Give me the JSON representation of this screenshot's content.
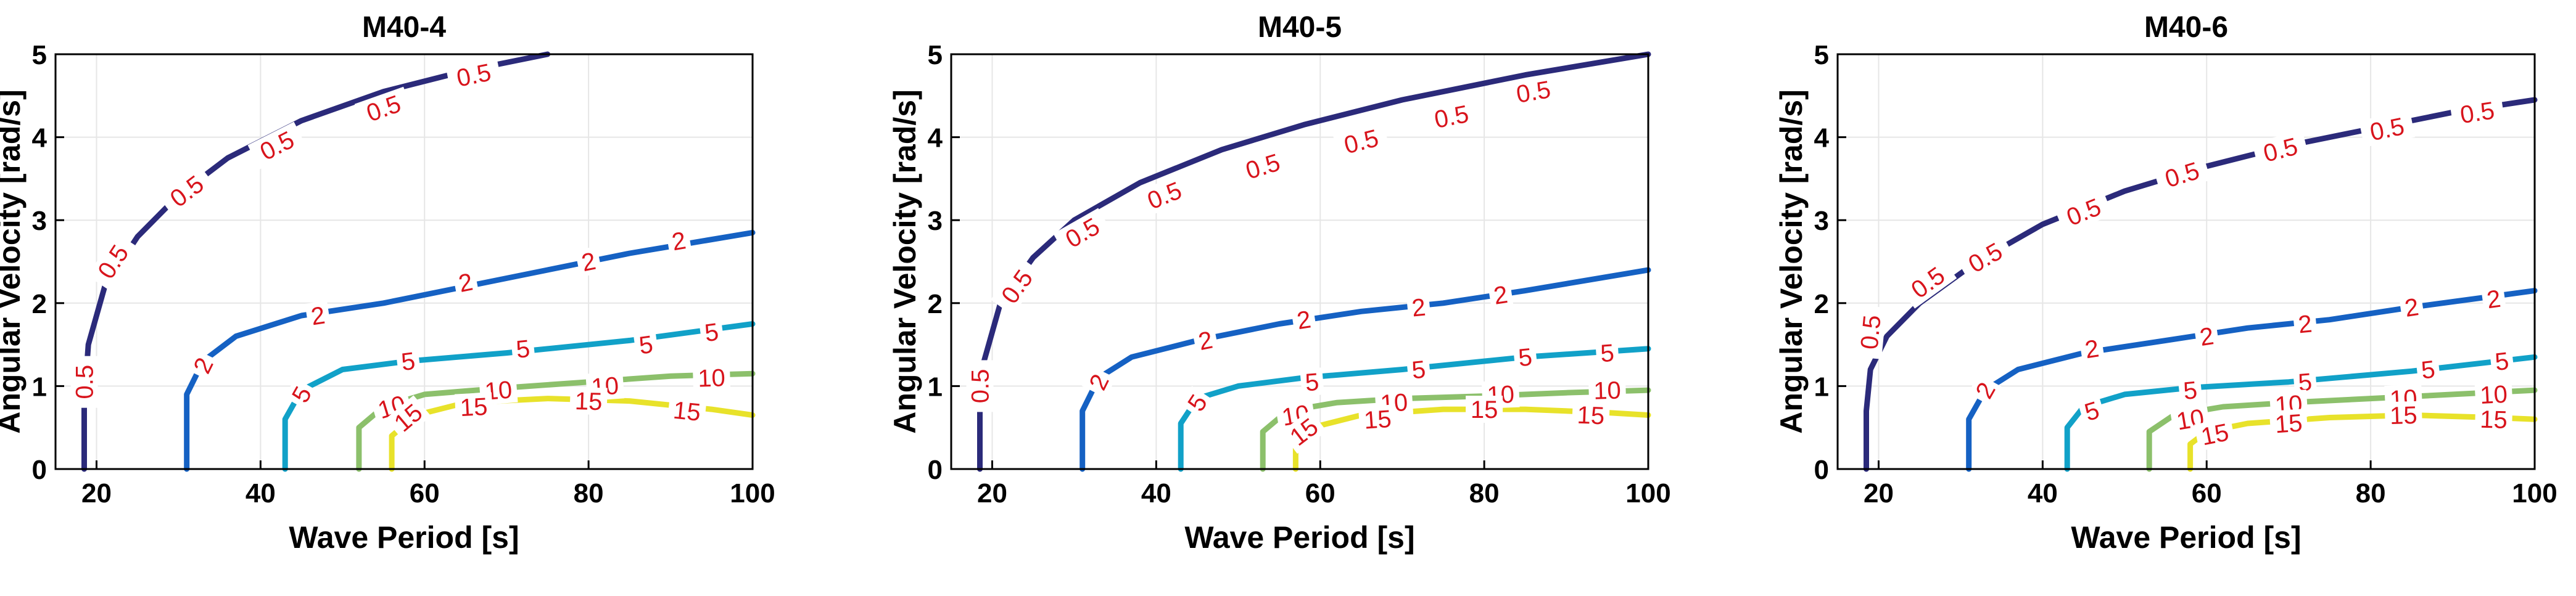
{
  "chart_data": [
    {
      "type": "contour",
      "title": "M40-4",
      "xlabel": "Wave Period [s]",
      "ylabel": "Angular Velocity [rad/s]",
      "xlim": [
        15,
        100
      ],
      "ylim": [
        0,
        5
      ],
      "xticks": [
        20,
        40,
        60,
        80,
        100
      ],
      "yticks": [
        0,
        1,
        2,
        3,
        4,
        5
      ],
      "grid": true,
      "contours": [
        {
          "level": 0.5,
          "label": "0.5",
          "color": "#2b2a7a",
          "points": [
            [
              18.5,
              0
            ],
            [
              18.5,
              0.8
            ],
            [
              19,
              1.5
            ],
            [
              21,
              2.2
            ],
            [
              25,
              2.8
            ],
            [
              30,
              3.3
            ],
            [
              36,
              3.75
            ],
            [
              45,
              4.2
            ],
            [
              55,
              4.55
            ],
            [
              65,
              4.8
            ],
            [
              75,
              5.0
            ]
          ],
          "label_positions": [
            [
              18.5,
              1.05
            ],
            [
              22,
              2.5
            ],
            [
              31,
              3.35
            ],
            [
              42,
              3.9
            ],
            [
              55,
              4.35
            ],
            [
              66,
              4.75
            ]
          ]
        },
        {
          "level": 2,
          "label": "2",
          "color": "#1561c3",
          "points": [
            [
              31,
              0
            ],
            [
              31,
              0.9
            ],
            [
              33,
              1.3
            ],
            [
              37,
              1.6
            ],
            [
              45,
              1.85
            ],
            [
              55,
              2.0
            ],
            [
              65,
              2.2
            ],
            [
              75,
              2.4
            ],
            [
              85,
              2.6
            ],
            [
              100,
              2.85
            ]
          ],
          "label_positions": [
            [
              33,
              1.25
            ],
            [
              47,
              1.85
            ],
            [
              65,
              2.25
            ],
            [
              80,
              2.5
            ],
            [
              91,
              2.75
            ]
          ]
        },
        {
          "level": 5,
          "label": "5",
          "color": "#11a1c8",
          "points": [
            [
              43,
              0
            ],
            [
              43,
              0.6
            ],
            [
              45,
              0.95
            ],
            [
              50,
              1.2
            ],
            [
              58,
              1.3
            ],
            [
              70,
              1.4
            ],
            [
              85,
              1.55
            ],
            [
              100,
              1.75
            ]
          ],
          "label_positions": [
            [
              45,
              0.9
            ],
            [
              58,
              1.3
            ],
            [
              72,
              1.45
            ],
            [
              87,
              1.5
            ],
            [
              95,
              1.65
            ]
          ]
        },
        {
          "level": 10,
          "label": "10",
          "color": "#8cc06b",
          "points": [
            [
              52,
              0
            ],
            [
              52,
              0.5
            ],
            [
              55,
              0.75
            ],
            [
              60,
              0.9
            ],
            [
              70,
              0.98
            ],
            [
              80,
              1.05
            ],
            [
              90,
              1.12
            ],
            [
              100,
              1.15
            ]
          ],
          "label_positions": [
            [
              56,
              0.75
            ],
            [
              69,
              0.95
            ],
            [
              82,
              1.0
            ],
            [
              95,
              1.1
            ]
          ]
        },
        {
          "level": 15,
          "label": "15",
          "color": "#e8e22a",
          "points": [
            [
              56,
              0
            ],
            [
              56,
              0.4
            ],
            [
              59,
              0.65
            ],
            [
              65,
              0.8
            ],
            [
              75,
              0.85
            ],
            [
              85,
              0.82
            ],
            [
              95,
              0.72
            ],
            [
              100,
              0.65
            ]
          ],
          "label_positions": [
            [
              58,
              0.62
            ],
            [
              66,
              0.75
            ],
            [
              80,
              0.82
            ],
            [
              92,
              0.7
            ]
          ]
        }
      ]
    },
    {
      "type": "contour",
      "title": "M40-5",
      "xlabel": "Wave Period [s]",
      "ylabel": "Angular Velocity [rad/s]",
      "xlim": [
        15,
        100
      ],
      "ylim": [
        0,
        5
      ],
      "xticks": [
        20,
        40,
        60,
        80,
        100
      ],
      "yticks": [
        0,
        1,
        2,
        3,
        4,
        5
      ],
      "grid": true,
      "contours": [
        {
          "level": 0.5,
          "label": "0.5",
          "color": "#2b2a7a",
          "points": [
            [
              18.5,
              0
            ],
            [
              18.5,
              0.7
            ],
            [
              19,
              1.3
            ],
            [
              21,
              2.0
            ],
            [
              25,
              2.55
            ],
            [
              30,
              3.0
            ],
            [
              38,
              3.45
            ],
            [
              48,
              3.85
            ],
            [
              58,
              4.15
            ],
            [
              70,
              4.45
            ],
            [
              85,
              4.75
            ],
            [
              100,
              5.0
            ]
          ],
          "label_positions": [
            [
              18.5,
              1.0
            ],
            [
              23,
              2.2
            ],
            [
              31,
              2.85
            ],
            [
              41,
              3.3
            ],
            [
              53,
              3.65
            ],
            [
              65,
              3.95
            ],
            [
              76,
              4.25
            ],
            [
              86,
              4.55
            ]
          ]
        },
        {
          "level": 2,
          "label": "2",
          "color": "#1561c3",
          "points": [
            [
              31,
              0
            ],
            [
              31,
              0.7
            ],
            [
              33,
              1.1
            ],
            [
              37,
              1.35
            ],
            [
              45,
              1.55
            ],
            [
              55,
              1.75
            ],
            [
              65,
              1.9
            ],
            [
              75,
              2.0
            ],
            [
              85,
              2.15
            ],
            [
              100,
              2.4
            ]
          ],
          "label_positions": [
            [
              33,
              1.05
            ],
            [
              46,
              1.55
            ],
            [
              58,
              1.8
            ],
            [
              72,
              1.95
            ],
            [
              82,
              2.1
            ]
          ]
        },
        {
          "level": 5,
          "label": "5",
          "color": "#11a1c8",
          "points": [
            [
              43,
              0
            ],
            [
              43,
              0.55
            ],
            [
              45,
              0.85
            ],
            [
              50,
              1.0
            ],
            [
              58,
              1.1
            ],
            [
              70,
              1.2
            ],
            [
              85,
              1.35
            ],
            [
              100,
              1.45
            ]
          ],
          "label_positions": [
            [
              45,
              0.8
            ],
            [
              59,
              1.05
            ],
            [
              72,
              1.2
            ],
            [
              85,
              1.35
            ],
            [
              95,
              1.4
            ]
          ]
        },
        {
          "level": 10,
          "label": "10",
          "color": "#8cc06b",
          "points": [
            [
              53,
              0
            ],
            [
              53,
              0.45
            ],
            [
              56,
              0.7
            ],
            [
              62,
              0.8
            ],
            [
              70,
              0.85
            ],
            [
              80,
              0.88
            ],
            [
              90,
              0.92
            ],
            [
              100,
              0.95
            ]
          ],
          "label_positions": [
            [
              57,
              0.65
            ],
            [
              69,
              0.8
            ],
            [
              82,
              0.9
            ],
            [
              95,
              0.95
            ]
          ]
        },
        {
          "level": 15,
          "label": "15",
          "color": "#e8e22a",
          "points": [
            [
              57,
              0
            ],
            [
              57,
              0.35
            ],
            [
              59,
              0.5
            ],
            [
              65,
              0.65
            ],
            [
              75,
              0.72
            ],
            [
              85,
              0.72
            ],
            [
              95,
              0.68
            ],
            [
              100,
              0.65
            ]
          ],
          "label_positions": [
            [
              58,
              0.45
            ],
            [
              67,
              0.6
            ],
            [
              80,
              0.72
            ],
            [
              93,
              0.65
            ]
          ]
        }
      ]
    },
    {
      "type": "contour",
      "title": "M40-6",
      "xlabel": "Wave Period [s]",
      "ylabel": "Angular Velocity [rad/s]",
      "xlim": [
        15,
        100
      ],
      "ylim": [
        0,
        5
      ],
      "xticks": [
        20,
        40,
        60,
        80,
        100
      ],
      "yticks": [
        0,
        1,
        2,
        3,
        4,
        5
      ],
      "grid": true,
      "contours": [
        {
          "level": 0.5,
          "label": "0.5",
          "color": "#2b2a7a",
          "points": [
            [
              18.5,
              0
            ],
            [
              18.5,
              0.7
            ],
            [
              19,
              1.2
            ],
            [
              21,
              1.6
            ],
            [
              25,
              2.0
            ],
            [
              32,
              2.5
            ],
            [
              40,
              2.95
            ],
            [
              50,
              3.35
            ],
            [
              60,
              3.65
            ],
            [
              70,
              3.9
            ],
            [
              80,
              4.1
            ],
            [
              90,
              4.3
            ],
            [
              100,
              4.45
            ]
          ],
          "label_positions": [
            [
              19,
              1.65
            ],
            [
              26,
              2.25
            ],
            [
              33,
              2.55
            ],
            [
              45,
              3.1
            ],
            [
              57,
              3.55
            ],
            [
              69,
              3.85
            ],
            [
              82,
              4.1
            ],
            [
              93,
              4.3
            ]
          ]
        },
        {
          "level": 2,
          "label": "2",
          "color": "#1561c3",
          "points": [
            [
              31,
              0
            ],
            [
              31,
              0.6
            ],
            [
              33,
              0.95
            ],
            [
              37,
              1.2
            ],
            [
              45,
              1.4
            ],
            [
              55,
              1.55
            ],
            [
              65,
              1.7
            ],
            [
              75,
              1.8
            ],
            [
              85,
              1.95
            ],
            [
              100,
              2.15
            ]
          ],
          "label_positions": [
            [
              33,
              0.95
            ],
            [
              46,
              1.45
            ],
            [
              60,
              1.6
            ],
            [
              72,
              1.75
            ],
            [
              85,
              1.95
            ],
            [
              95,
              2.05
            ]
          ]
        },
        {
          "level": 5,
          "label": "5",
          "color": "#11a1c8",
          "points": [
            [
              43,
              0
            ],
            [
              43,
              0.5
            ],
            [
              45,
              0.75
            ],
            [
              50,
              0.9
            ],
            [
              58,
              0.98
            ],
            [
              70,
              1.05
            ],
            [
              85,
              1.18
            ],
            [
              100,
              1.35
            ]
          ],
          "label_positions": [
            [
              46,
              0.7
            ],
            [
              58,
              0.95
            ],
            [
              72,
              1.05
            ],
            [
              87,
              1.2
            ],
            [
              96,
              1.3
            ]
          ]
        },
        {
          "level": 10,
          "label": "10",
          "color": "#8cc06b",
          "points": [
            [
              53,
              0
            ],
            [
              53,
              0.45
            ],
            [
              56,
              0.65
            ],
            [
              62,
              0.75
            ],
            [
              70,
              0.8
            ],
            [
              80,
              0.85
            ],
            [
              90,
              0.9
            ],
            [
              100,
              0.95
            ]
          ],
          "label_positions": [
            [
              58,
              0.6
            ],
            [
              70,
              0.78
            ],
            [
              84,
              0.85
            ],
            [
              95,
              0.9
            ]
          ]
        },
        {
          "level": 15,
          "label": "15",
          "color": "#e8e22a",
          "points": [
            [
              58,
              0
            ],
            [
              58,
              0.3
            ],
            [
              60,
              0.45
            ],
            [
              65,
              0.55
            ],
            [
              75,
              0.62
            ],
            [
              85,
              0.65
            ],
            [
              95,
              0.62
            ],
            [
              100,
              0.6
            ]
          ],
          "label_positions": [
            [
              61,
              0.42
            ],
            [
              70,
              0.55
            ],
            [
              84,
              0.65
            ],
            [
              95,
              0.6
            ]
          ]
        }
      ]
    }
  ]
}
